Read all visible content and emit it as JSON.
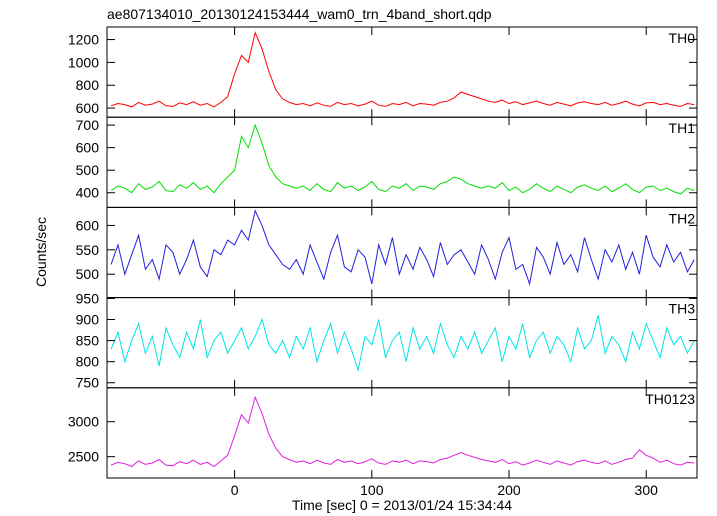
{
  "chart_data": {
    "type": "line",
    "title": "ae807134010_20130124153444_wam0_trn_4band_short.qdp",
    "xlabel": "Time [sec] 0 = 2013/01/24 15:34:44",
    "ylabel": "Counts/sec",
    "xlim": [
      -93,
      337
    ],
    "xticks": [
      0,
      100,
      200,
      300
    ],
    "x": [
      -90,
      -85,
      -80,
      -75,
      -70,
      -65,
      -60,
      -55,
      -50,
      -45,
      -40,
      -35,
      -30,
      -25,
      -20,
      -15,
      -10,
      -5,
      0,
      5,
      10,
      15,
      20,
      25,
      30,
      35,
      40,
      45,
      50,
      55,
      60,
      65,
      70,
      75,
      80,
      85,
      90,
      95,
      100,
      105,
      110,
      115,
      120,
      125,
      130,
      135,
      140,
      145,
      150,
      155,
      160,
      165,
      170,
      175,
      180,
      185,
      190,
      195,
      200,
      205,
      210,
      215,
      220,
      225,
      230,
      235,
      240,
      245,
      250,
      255,
      260,
      265,
      270,
      275,
      280,
      285,
      290,
      295,
      300,
      305,
      310,
      315,
      320,
      325,
      330,
      335
    ],
    "panels": [
      {
        "name": "TH0",
        "color": "#ff0000",
        "ylim": [
          520,
          1310
        ],
        "yticks": [
          600,
          800,
          1000,
          1200
        ],
        "values": [
          620,
          640,
          630,
          610,
          650,
          625,
          635,
          660,
          620,
          615,
          645,
          630,
          655,
          625,
          640,
          610,
          650,
          700,
          900,
          1060,
          1000,
          1260,
          1120,
          920,
          760,
          680,
          650,
          630,
          640,
          620,
          645,
          625,
          615,
          650,
          630,
          640,
          620,
          635,
          660,
          625,
          615,
          640,
          630,
          650,
          620,
          640,
          635,
          625,
          650,
          660,
          690,
          740,
          720,
          700,
          680,
          660,
          650,
          670,
          640,
          655,
          630,
          645,
          660,
          640,
          625,
          650,
          635,
          620,
          645,
          655,
          640,
          630,
          650,
          625,
          640,
          660,
          635,
          620,
          645,
          650,
          630,
          640,
          625,
          615,
          640,
          630
        ]
      },
      {
        "name": "TH1",
        "color": "#00e000",
        "ylim": [
          335,
          735
        ],
        "yticks": [
          400,
          500,
          600,
          700
        ],
        "values": [
          410,
          430,
          420,
          400,
          440,
          415,
          425,
          450,
          410,
          405,
          435,
          420,
          445,
          415,
          430,
          400,
          440,
          470,
          500,
          650,
          600,
          700,
          620,
          520,
          470,
          440,
          430,
          420,
          430,
          410,
          440,
          415,
          405,
          445,
          420,
          430,
          410,
          425,
          450,
          415,
          405,
          430,
          420,
          440,
          410,
          430,
          425,
          415,
          440,
          450,
          470,
          460,
          440,
          430,
          420,
          430,
          420,
          445,
          410,
          425,
          400,
          415,
          440,
          420,
          405,
          430,
          415,
          400,
          425,
          435,
          420,
          410,
          430,
          405,
          420,
          440,
          415,
          400,
          425,
          430,
          410,
          420,
          405,
          395,
          420,
          410
        ]
      },
      {
        "name": "TH2",
        "color": "#2020e0",
        "ylim": [
          452,
          637
        ],
        "yticks": [
          500,
          550,
          600
        ],
        "values": [
          520,
          560,
          500,
          540,
          580,
          510,
          530,
          490,
          560,
          545,
          500,
          530,
          570,
          515,
          495,
          550,
          540,
          570,
          560,
          590,
          570,
          630,
          600,
          560,
          540,
          520,
          510,
          530,
          500,
          560,
          525,
          490,
          545,
          580,
          515,
          505,
          550,
          535,
          480,
          560,
          520,
          575,
          500,
          540,
          510,
          555,
          530,
          495,
          565,
          520,
          540,
          550,
          525,
          500,
          560,
          530,
          490,
          545,
          575,
          510,
          520,
          480,
          555,
          535,
          500,
          565,
          520,
          540,
          505,
          575,
          530,
          490,
          550,
          525,
          560,
          510,
          545,
          500,
          580,
          535,
          515,
          560,
          525,
          545,
          505,
          530
        ]
      },
      {
        "name": "TH3",
        "color": "#00e5e5",
        "ylim": [
          738,
          952
        ],
        "yticks": [
          750,
          800,
          850,
          900,
          950
        ],
        "values": [
          830,
          870,
          800,
          850,
          890,
          820,
          860,
          790,
          880,
          840,
          810,
          870,
          830,
          900,
          810,
          850,
          870,
          820,
          850,
          880,
          830,
          860,
          900,
          840,
          820,
          850,
          810,
          860,
          830,
          880,
          800,
          850,
          890,
          820,
          870,
          830,
          780,
          860,
          840,
          900,
          810,
          850,
          870,
          800,
          880,
          830,
          860,
          820,
          890,
          840,
          810,
          860,
          830,
          870,
          820,
          850,
          880,
          800,
          860,
          830,
          890,
          810,
          850,
          870,
          820,
          860,
          840,
          800,
          880,
          830,
          850,
          910,
          820,
          860,
          840,
          800,
          870,
          830,
          890,
          850,
          810,
          880,
          840,
          860,
          820,
          850
        ]
      },
      {
        "name": "TH0123",
        "color": "#e020e0",
        "ylim": [
          2195,
          3485
        ],
        "yticks": [
          2500,
          3000
        ],
        "values": [
          2380,
          2420,
          2400,
          2360,
          2440,
          2390,
          2410,
          2460,
          2380,
          2370,
          2430,
          2400,
          2450,
          2390,
          2420,
          2360,
          2440,
          2520,
          2800,
          3100,
          2980,
          3350,
          3120,
          2820,
          2620,
          2500,
          2460,
          2420,
          2440,
          2400,
          2450,
          2410,
          2390,
          2460,
          2420,
          2440,
          2400,
          2430,
          2470,
          2410,
          2390,
          2440,
          2420,
          2450,
          2400,
          2440,
          2430,
          2410,
          2460,
          2480,
          2520,
          2560,
          2520,
          2490,
          2460,
          2440,
          2420,
          2460,
          2400,
          2430,
          2380,
          2410,
          2450,
          2420,
          2390,
          2440,
          2410,
          2380,
          2430,
          2450,
          2420,
          2400,
          2440,
          2390,
          2420,
          2460,
          2480,
          2600,
          2520,
          2480,
          2420,
          2450,
          2400,
          2380,
          2420,
          2410
        ]
      }
    ]
  }
}
